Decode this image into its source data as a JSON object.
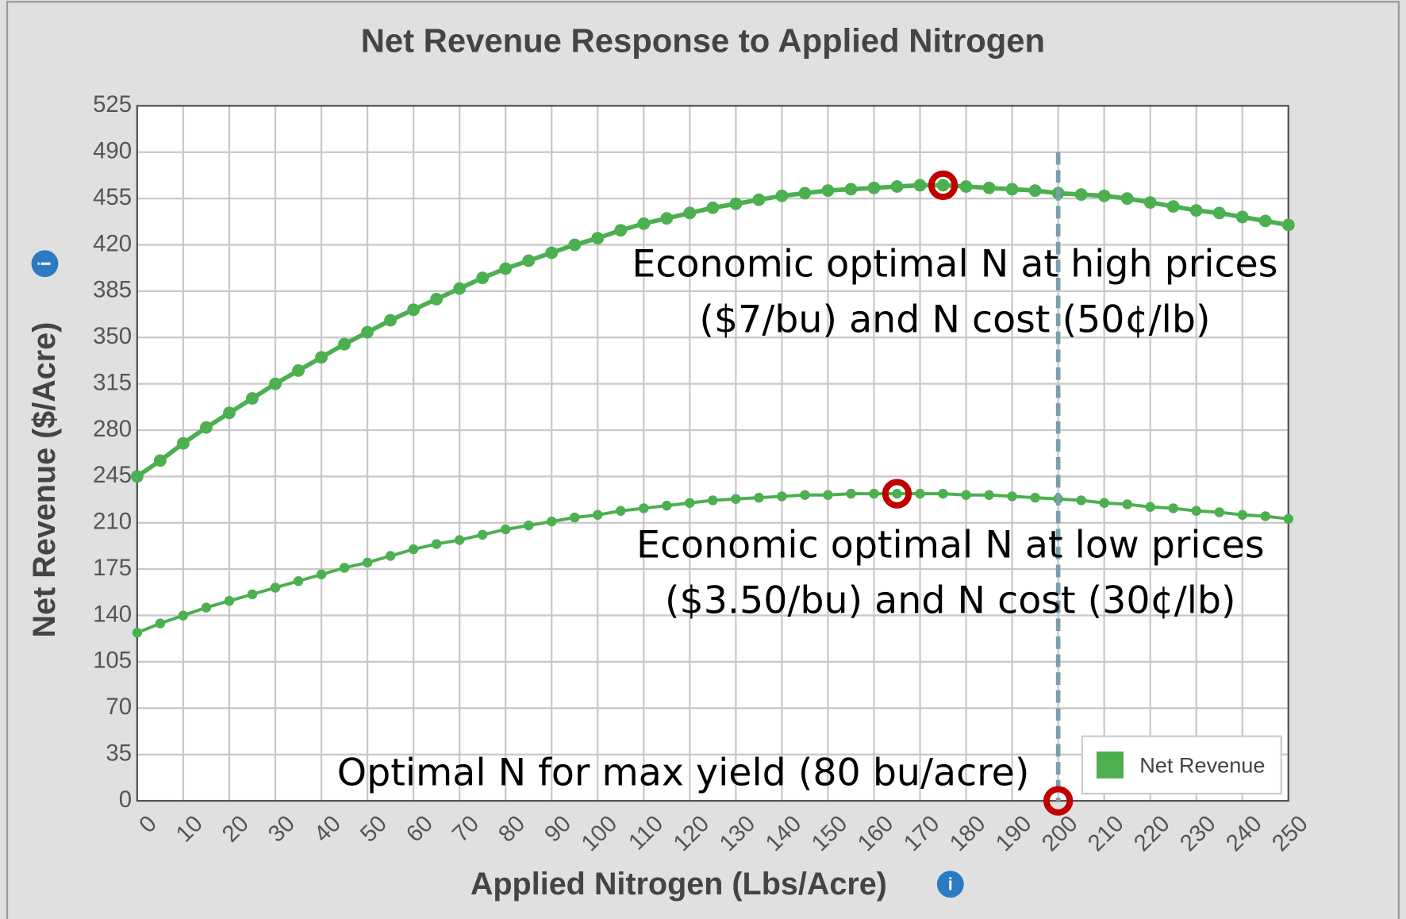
{
  "chart_data": {
    "type": "line",
    "title": "Net Revenue Response to Applied Nitrogen",
    "x_label": "Applied Nitrogen (Lbs/Acre)",
    "y_label": "Net Revenue ($/Acre)",
    "x": [
      0,
      5,
      10,
      15,
      20,
      25,
      30,
      35,
      40,
      45,
      50,
      55,
      60,
      65,
      70,
      75,
      80,
      85,
      90,
      95,
      100,
      105,
      110,
      115,
      120,
      125,
      130,
      135,
      140,
      145,
      150,
      155,
      160,
      165,
      170,
      175,
      180,
      185,
      190,
      195,
      200,
      205,
      210,
      215,
      220,
      225,
      230,
      235,
      240,
      245,
      250
    ],
    "series": [
      {
        "color": "#4caf50",
        "values": [
          245,
          257,
          270,
          282,
          293,
          304,
          315,
          325,
          335,
          345,
          354,
          363,
          371,
          379,
          387,
          395,
          402,
          408,
          414,
          420,
          425,
          431,
          436,
          440,
          444,
          448,
          451,
          454,
          457,
          459,
          461,
          462,
          463,
          464,
          465,
          465,
          464,
          463,
          462,
          461,
          459,
          458,
          457,
          455,
          452,
          449,
          446,
          444,
          441,
          438,
          435
        ]
      },
      {
        "color": "#4caf50",
        "values": [
          127,
          134,
          140,
          146,
          151,
          156,
          161,
          166,
          171,
          176,
          180,
          185,
          190,
          194,
          197,
          201,
          205,
          208,
          211,
          214,
          216,
          219,
          221,
          223,
          225,
          227,
          228,
          229,
          230,
          231,
          231,
          232,
          232,
          232,
          232,
          232,
          231,
          231,
          230,
          229,
          228,
          227,
          225,
          224,
          222,
          221,
          219,
          218,
          216,
          215,
          213
        ]
      }
    ],
    "highlights": [
      {
        "x": 175,
        "y": 465
      },
      {
        "x": 165,
        "y": 232
      },
      {
        "x": 200,
        "y": 0
      }
    ],
    "highlight_color": "#c00000",
    "vline": {
      "x": 200,
      "top": 490,
      "color": "#7a9eae"
    },
    "annotations": [
      [
        "Economic optimal N at high prices",
        "($7/bu) and N cost (50¢/lb)"
      ],
      [
        "Economic optimal N at low prices",
        "($3.50/bu) and N cost (30¢/lb)"
      ],
      [
        "Optimal N for max yield (80 bu/acre)"
      ]
    ],
    "legend": {
      "label": "Net Revenue",
      "position": "lower right"
    },
    "xlim": [
      0,
      250
    ],
    "ylim": [
      0,
      525
    ],
    "xticks": [
      0,
      10,
      20,
      30,
      40,
      50,
      60,
      70,
      80,
      90,
      100,
      110,
      120,
      130,
      140,
      150,
      160,
      170,
      180,
      190,
      200,
      210,
      220,
      230,
      240,
      250
    ],
    "yticks": [
      0,
      35,
      70,
      105,
      140,
      175,
      210,
      245,
      280,
      315,
      350,
      385,
      420,
      455,
      490,
      525
    ],
    "grid": true
  }
}
